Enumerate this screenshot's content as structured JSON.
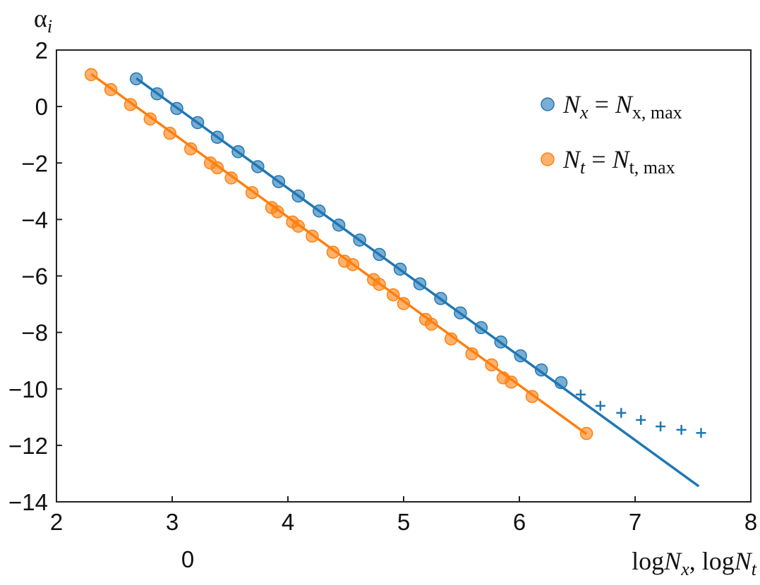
{
  "chart_data": {
    "type": "scatter",
    "xlabel": {
      "part1_prefix": "log",
      "part1_var": "N",
      "part1_sub": "x",
      "separator": ", ",
      "part2_prefix": "log",
      "part2_var": "N",
      "part2_sub": "t"
    },
    "ylabel": {
      "base": "α",
      "sub": "i"
    },
    "xlim": [
      2,
      8
    ],
    "ylim": [
      -14,
      2
    ],
    "x_ticks": [
      2,
      3,
      4,
      5,
      6,
      7,
      8
    ],
    "y_ticks": [
      2,
      0,
      -2,
      -4,
      -6,
      -8,
      -10,
      -12,
      -14
    ],
    "x_ticks_text": [
      "2",
      "3",
      "4",
      "5",
      "6",
      "7",
      "8"
    ],
    "y_ticks_text": [
      "2",
      "0",
      "−2",
      "−4",
      "−6",
      "−8",
      "−10",
      "−12",
      "−14"
    ],
    "extra_label": "0",
    "grid": false,
    "legend_position": "top-right",
    "series": [
      {
        "name": "N_x = N_x,max",
        "legend": {
          "lhs_var": "N",
          "lhs_sub": "x",
          "eq": " = ",
          "rhs_var": "N",
          "rhs_sub": "x, max"
        },
        "color": "#1f77b4",
        "marker": "circle",
        "x": [
          2.69,
          2.87,
          3.04,
          3.22,
          3.39,
          3.57,
          3.74,
          3.92,
          4.09,
          4.27,
          4.44,
          4.62,
          4.79,
          4.97,
          5.14,
          5.32,
          5.49,
          5.67,
          5.84,
          6.01,
          6.19,
          6.36
        ],
        "y": [
          0.98,
          0.45,
          -0.07,
          -0.57,
          -1.09,
          -1.6,
          -2.13,
          -2.66,
          -3.17,
          -3.7,
          -4.2,
          -4.73,
          -5.24,
          -5.76,
          -6.28,
          -6.8,
          -7.31,
          -7.83,
          -8.34,
          -8.83,
          -9.33,
          -9.78
        ]
      },
      {
        "name": "N_t = N_t,max",
        "legend": {
          "lhs_var": "N",
          "lhs_sub": "t",
          "eq": " = ",
          "rhs_var": "N",
          "rhs_sub": "t, max"
        },
        "color": "#ff7f0e",
        "marker": "circle",
        "x": [
          2.3,
          2.47,
          2.64,
          2.81,
          2.98,
          3.16,
          3.33,
          3.39,
          3.51,
          3.69,
          3.86,
          3.91,
          4.04,
          4.09,
          4.21,
          4.39,
          4.49,
          4.56,
          4.74,
          4.79,
          4.91,
          5.0,
          5.19,
          5.24,
          5.41,
          5.59,
          5.76,
          5.86,
          5.93,
          6.11,
          6.58
        ],
        "y": [
          1.13,
          0.6,
          0.07,
          -0.44,
          -0.95,
          -1.5,
          -2.0,
          -2.17,
          -2.53,
          -3.05,
          -3.58,
          -3.73,
          -4.09,
          -4.24,
          -4.59,
          -5.16,
          -5.48,
          -5.6,
          -6.13,
          -6.3,
          -6.67,
          -6.98,
          -7.54,
          -7.71,
          -8.23,
          -8.76,
          -9.15,
          -9.61,
          -9.76,
          -10.27,
          -11.58
        ]
      },
      {
        "color": "#1f77b4",
        "marker": "plus",
        "legend_entry": false,
        "x": [
          6.53,
          6.7,
          6.88,
          7.05,
          7.22,
          7.4,
          7.57
        ],
        "y": [
          -10.2,
          -10.6,
          -10.85,
          -11.1,
          -11.33,
          -11.45,
          -11.56
        ]
      }
    ],
    "fit_lines": [
      {
        "color": "#1f77b4",
        "x": [
          2.69,
          7.55
        ],
        "y": [
          1.0,
          -13.45
        ]
      },
      {
        "color": "#ff7f0e",
        "x": [
          2.3,
          6.58
        ],
        "y": [
          1.15,
          -11.6
        ]
      }
    ]
  }
}
